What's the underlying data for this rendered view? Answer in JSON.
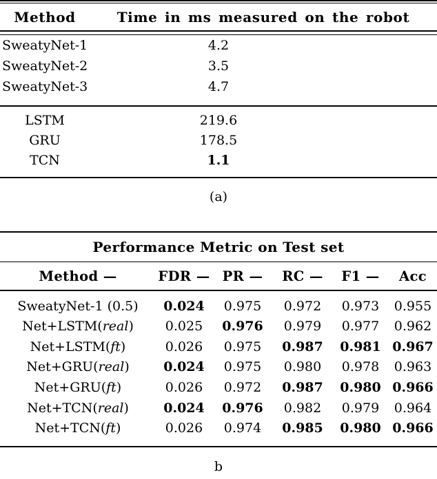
{
  "background_color": "#ffffff",
  "text_color": "#000000",
  "table_a": {
    "col_method": "Method",
    "col_time": "Time in ms measured on the robot",
    "group1": [
      {
        "method": "SweatyNet-1",
        "time": "4.2",
        "bold": false
      },
      {
        "method": "SweatyNet-2",
        "time": "3.5",
        "bold": false
      },
      {
        "method": "SweatyNet-3",
        "time": "4.7",
        "bold": false
      }
    ],
    "group2": [
      {
        "method": "LSTM",
        "time": "219.6",
        "bold": false
      },
      {
        "method": "GRU",
        "time": "178.5",
        "bold": false
      },
      {
        "method": "TCN",
        "time": "1.1",
        "bold": true
      }
    ],
    "caption": "(a)"
  },
  "table_b": {
    "title": "Performance Metric on Test set",
    "headers": {
      "method": "Method —",
      "fdr": "FDR —",
      "pr": "PR —",
      "rc": "RC —",
      "f1": "F1 —",
      "acc": "Acc"
    },
    "rows": [
      {
        "method": {
          "pre": "SweatyNet-1 (0.5)",
          "it": "",
          "post": ""
        },
        "fdr": {
          "v": "0.024",
          "b": true
        },
        "pr": {
          "v": "0.975",
          "b": false
        },
        "rc": {
          "v": "0.972",
          "b": false
        },
        "f1": {
          "v": "0.973",
          "b": false
        },
        "acc": {
          "v": "0.955",
          "b": false
        }
      },
      {
        "method": {
          "pre": "Net+LSTM(",
          "it": "real",
          "post": ")"
        },
        "fdr": {
          "v": "0.025",
          "b": false
        },
        "pr": {
          "v": "0.976",
          "b": true
        },
        "rc": {
          "v": "0.979",
          "b": false
        },
        "f1": {
          "v": "0.977",
          "b": false
        },
        "acc": {
          "v": "0.962",
          "b": false
        }
      },
      {
        "method": {
          "pre": "Net+LSTM(",
          "it": "ft",
          "post": ")"
        },
        "fdr": {
          "v": "0.026",
          "b": false
        },
        "pr": {
          "v": "0.975",
          "b": false
        },
        "rc": {
          "v": "0.987",
          "b": true
        },
        "f1": {
          "v": "0.981",
          "b": true
        },
        "acc": {
          "v": "0.967",
          "b": true
        }
      },
      {
        "method": {
          "pre": "Net+GRU(",
          "it": "real",
          "post": ")"
        },
        "fdr": {
          "v": "0.024",
          "b": true
        },
        "pr": {
          "v": "0.975",
          "b": false
        },
        "rc": {
          "v": "0.980",
          "b": false
        },
        "f1": {
          "v": "0.978",
          "b": false
        },
        "acc": {
          "v": "0.963",
          "b": false
        }
      },
      {
        "method": {
          "pre": "Net+GRU(",
          "it": "ft",
          "post": ")"
        },
        "fdr": {
          "v": "0.026",
          "b": false
        },
        "pr": {
          "v": "0.972",
          "b": false
        },
        "rc": {
          "v": "0.987",
          "b": true
        },
        "f1": {
          "v": "0.980",
          "b": true
        },
        "acc": {
          "v": "0.966",
          "b": true
        }
      },
      {
        "method": {
          "pre": "Net+TCN(",
          "it": "real",
          "post": ")"
        },
        "fdr": {
          "v": "0.024",
          "b": true
        },
        "pr": {
          "v": "0.976",
          "b": true
        },
        "rc": {
          "v": "0.982",
          "b": false
        },
        "f1": {
          "v": "0.979",
          "b": false
        },
        "acc": {
          "v": "0.964",
          "b": false
        }
      },
      {
        "method": {
          "pre": "Net+TCN(",
          "it": "ft",
          "post": ")"
        },
        "fdr": {
          "v": "0.026",
          "b": false
        },
        "pr": {
          "v": "0.974",
          "b": false
        },
        "rc": {
          "v": "0.985",
          "b": true
        },
        "f1": {
          "v": "0.980",
          "b": true
        },
        "acc": {
          "v": "0.966",
          "b": true
        }
      }
    ],
    "caption": "b"
  }
}
